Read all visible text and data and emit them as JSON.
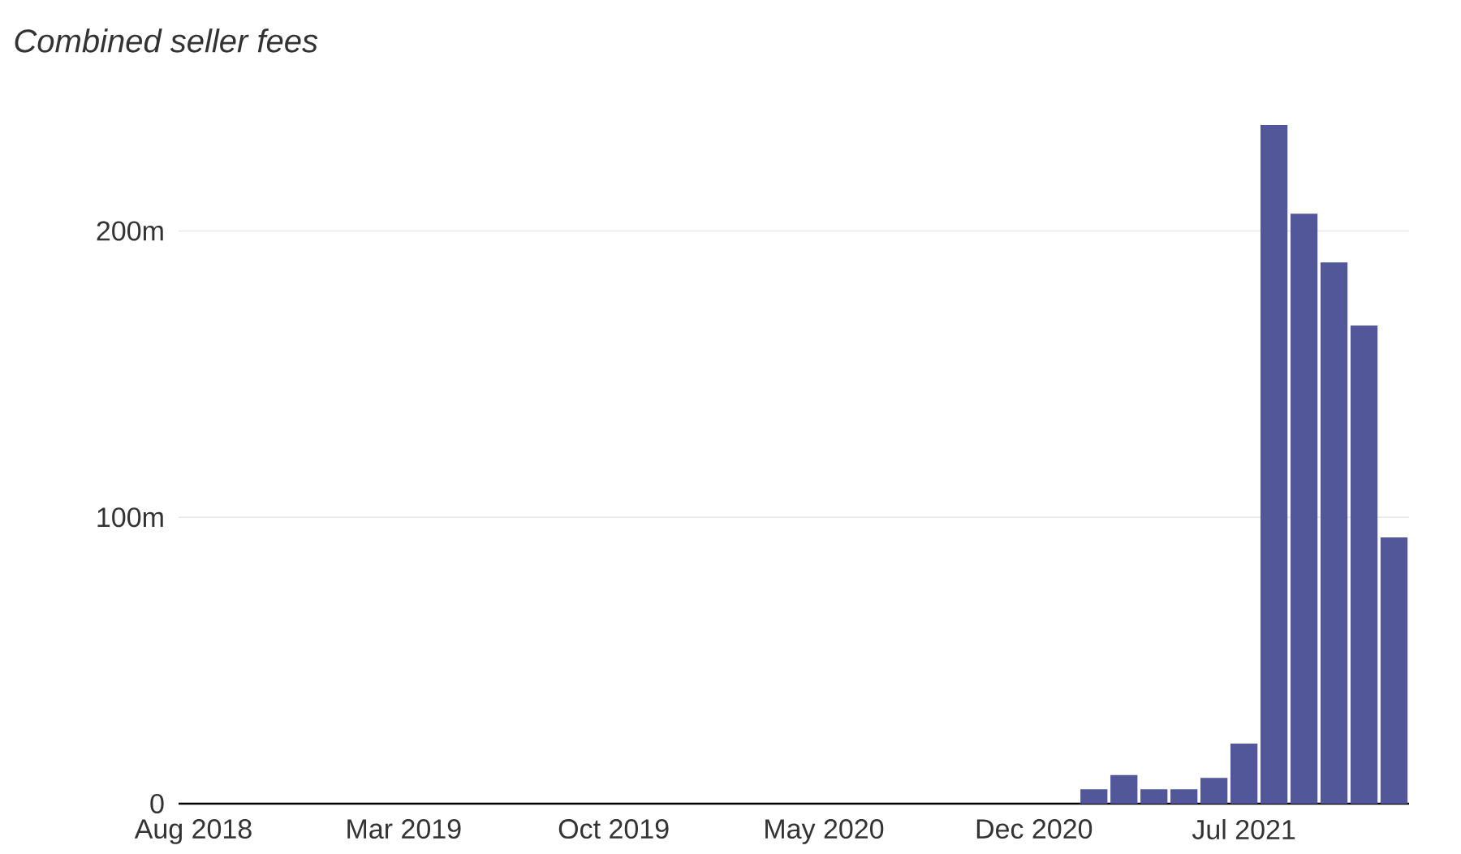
{
  "chart_data": {
    "type": "bar",
    "subtitle": "Combined seller fees",
    "categories": [
      "Aug 2018",
      null,
      null,
      null,
      null,
      null,
      null,
      "Mar 2019",
      null,
      null,
      null,
      null,
      null,
      null,
      "Oct 2019",
      null,
      null,
      null,
      null,
      null,
      null,
      "May 2020",
      null,
      null,
      null,
      null,
      null,
      null,
      "Dec 2020",
      null,
      null,
      null,
      null,
      null,
      null,
      "Jul 2021",
      null,
      null,
      null,
      null,
      null
    ],
    "values": [
      0,
      0,
      0,
      0,
      0,
      0,
      0,
      0,
      0,
      0,
      0,
      0,
      0,
      0,
      0,
      0,
      0,
      0,
      0,
      0,
      0,
      0,
      0,
      0,
      0,
      0,
      0,
      0,
      0,
      0,
      5,
      10,
      5,
      5,
      9,
      21,
      237,
      206,
      189,
      167,
      93
    ],
    "color": "#52579a",
    "ylim": [
      0,
      237
    ],
    "yticks": [
      0,
      {
        "value": 100,
        "label": "100m"
      },
      {
        "value": 200,
        "label": "200m"
      }
    ],
    "grid": "y"
  }
}
